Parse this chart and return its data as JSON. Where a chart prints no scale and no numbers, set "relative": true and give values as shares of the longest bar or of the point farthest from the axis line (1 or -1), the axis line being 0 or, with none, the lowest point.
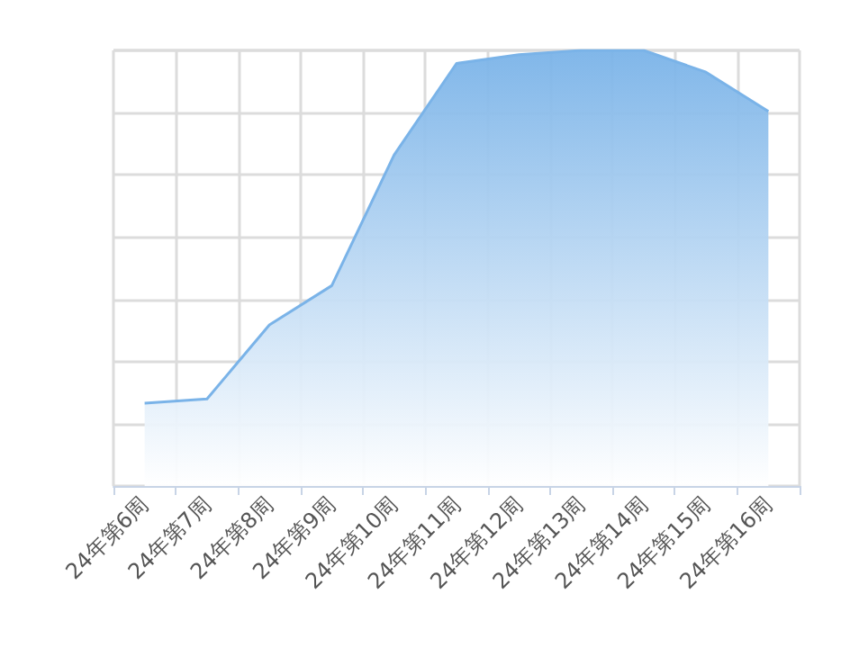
{
  "chart_data": {
    "type": "area",
    "relative": true,
    "grid": true,
    "categories": [
      "24年第6周",
      "24年第7周",
      "24年第8周",
      "24年第9周",
      "24年第10周",
      "24年第11周",
      "24年第12周",
      "24年第13周",
      "24年第14周",
      "24年第15周",
      "24年第16周"
    ],
    "series": [
      {
        "color": "#7ab3e8",
        "values": [
          0.19,
          0.2,
          0.37,
          0.46,
          0.76,
          0.97,
          0.99,
          1.0,
          1.0,
          0.95,
          0.86
        ]
      }
    ]
  }
}
